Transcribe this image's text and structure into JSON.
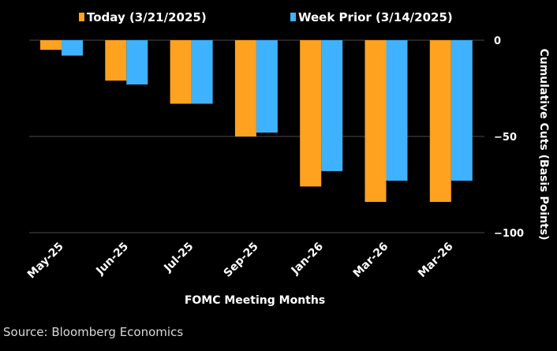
{
  "chart_data": {
    "type": "bar",
    "title": "",
    "xlabel": "FOMC Meeting Months",
    "ylabel": "Cumulative Cuts (Basis Points)",
    "ylim": [
      -100,
      0
    ],
    "yticks": [
      0,
      -50,
      -100
    ],
    "y_axis_side": "right",
    "grid": true,
    "legend_position": "top",
    "categories": [
      "May-25",
      "Jun-25",
      "Jul-25",
      "Sep-25",
      "Jan-26",
      "Mar-26",
      "Mar-26"
    ],
    "series": [
      {
        "name": "Today (3/21/2025)",
        "color": "#FFA21F",
        "values": [
          -5,
          -21,
          -33,
          -50,
          -76,
          -84,
          -84
        ]
      },
      {
        "name": "Week Prior (3/14/2025)",
        "color": "#3FB2FF",
        "values": [
          -8,
          -23,
          -33,
          -48,
          -68,
          -73,
          -73
        ]
      }
    ]
  },
  "source": "Source: Bloomberg Economics",
  "colors": {
    "background": "#000000",
    "gridline": "#4a4a4a",
    "text": "#ffffff"
  }
}
